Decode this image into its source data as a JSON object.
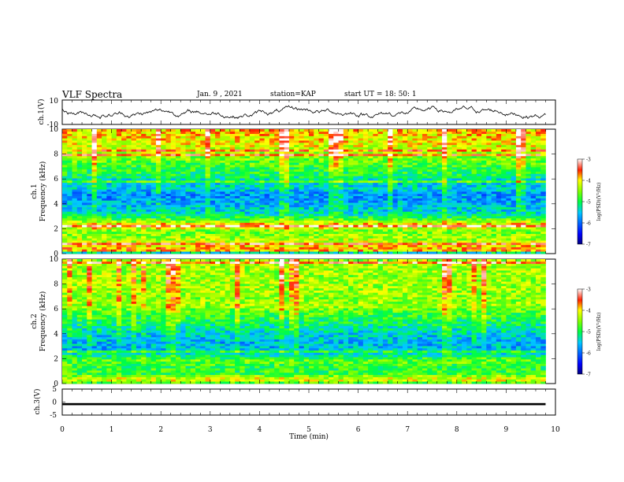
{
  "header": {
    "title": "VLF Spectra",
    "date": "Jan. 9 , 2021",
    "station": "station=KAP",
    "start_time": "start UT = 18: 50: 1"
  },
  "chart_data": [
    {
      "type": "line",
      "id": "ch1-waveform",
      "ylabel": "ch.1(V)",
      "y_ticks": [
        "10",
        "-10"
      ],
      "ylim": [
        -10,
        10
      ],
      "xlim": [
        0,
        10
      ],
      "x_extent_min": 9.8,
      "amplitude_range": [
        -6,
        7
      ],
      "color": "#000000"
    },
    {
      "type": "heatmap",
      "id": "ch1-spectrogram",
      "ylabel": "Frequency (kHz)",
      "panel_label": "ch.1",
      "xlim": [
        0,
        10
      ],
      "ylim": [
        0,
        10
      ],
      "y_ticks": [
        "0",
        "2",
        "4",
        "6",
        "8",
        "10"
      ],
      "x_extent_min": 9.8,
      "colorbar": {
        "label": "log(PSD)(V²/Hz)",
        "range": [
          -7,
          -3
        ],
        "ticks": [
          "-3",
          "-4",
          "-5",
          "-6",
          "-7"
        ]
      },
      "approx_level_by_frequency_khz": [
        [
          0.0,
          -6.0
        ],
        [
          0.3,
          -3.6
        ],
        [
          0.8,
          -4.2
        ],
        [
          1.3,
          -4.4
        ],
        [
          1.8,
          -4.6
        ],
        [
          2.3,
          -3.8
        ],
        [
          2.8,
          -4.8
        ],
        [
          3.3,
          -5.4
        ],
        [
          3.8,
          -5.5
        ],
        [
          4.3,
          -5.7
        ],
        [
          4.8,
          -5.8
        ],
        [
          5.3,
          -5.4
        ],
        [
          5.8,
          -5.5
        ],
        [
          6.3,
          -5.0
        ],
        [
          6.8,
          -4.9
        ],
        [
          7.3,
          -4.7
        ],
        [
          7.8,
          -4.5
        ],
        [
          8.3,
          -4.3
        ],
        [
          8.8,
          -4.1
        ],
        [
          9.3,
          -4.0
        ],
        [
          10.0,
          -3.9
        ]
      ]
    },
    {
      "type": "heatmap",
      "id": "ch2-spectrogram",
      "ylabel": "Frequency (kHz)",
      "panel_label": "ch.2",
      "xlim": [
        0,
        10
      ],
      "ylim": [
        0,
        10
      ],
      "y_ticks": [
        "0",
        "2",
        "4",
        "6",
        "8",
        "10"
      ],
      "x_extent_min": 9.8,
      "colorbar": {
        "label": "log(PSD)(V²/Hz)",
        "range": [
          -7,
          -3
        ],
        "ticks": [
          "-3",
          "-4",
          "-5",
          "-6",
          "-7"
        ]
      },
      "approx_level_by_frequency_khz": [
        [
          0.0,
          -6.0
        ],
        [
          0.3,
          -4.0
        ],
        [
          0.8,
          -4.8
        ],
        [
          1.3,
          -4.9
        ],
        [
          1.8,
          -4.6
        ],
        [
          2.3,
          -5.2
        ],
        [
          2.8,
          -5.6
        ],
        [
          3.3,
          -5.6
        ],
        [
          3.8,
          -5.5
        ],
        [
          4.3,
          -5.3
        ],
        [
          4.8,
          -5.1
        ],
        [
          5.3,
          -4.9
        ],
        [
          5.8,
          -4.7
        ],
        [
          6.3,
          -4.4
        ],
        [
          6.8,
          -4.5
        ],
        [
          7.3,
          -4.4
        ],
        [
          7.8,
          -4.4
        ],
        [
          8.3,
          -4.4
        ],
        [
          8.8,
          -4.4
        ],
        [
          9.3,
          -4.4
        ],
        [
          10.0,
          -4.4
        ]
      ]
    },
    {
      "type": "line",
      "id": "ch3-waveform",
      "ylabel": "ch.3(V)",
      "y_ticks": [
        "5",
        "0",
        "-5"
      ],
      "ylim": [
        -5,
        5
      ],
      "xlim": [
        0,
        10
      ],
      "x_extent_min": 9.8,
      "value_range": [
        -1.2,
        -0.4
      ],
      "color": "#000000"
    }
  ],
  "xaxis": {
    "label": "Time (min)",
    "ticks": [
      "0",
      "1",
      "2",
      "3",
      "4",
      "5",
      "6",
      "7",
      "8",
      "9",
      "10"
    ],
    "range": [
      0,
      10
    ]
  }
}
